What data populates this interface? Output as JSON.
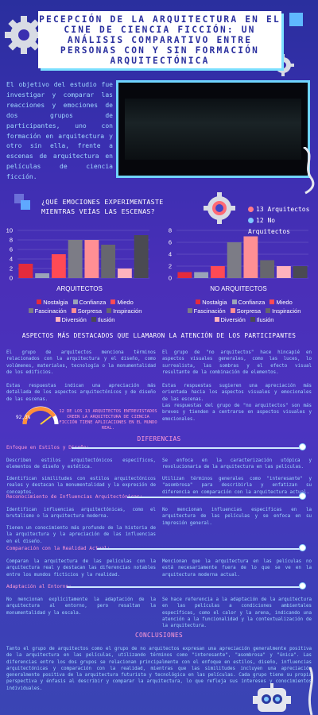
{
  "title": "PECEPCIÓN DE LA ARQUITECTURA EN EL CINE DE CIENCIA FICCIÓN: UN ANÁLISIS COMPARATIVO ENTRE PERSONAS CON Y SIN FORMACIÓN ARQUITECTÓNICA",
  "intro": "El objetivo del estudio fue investigar y comparar las reacciones y emociones de dos grupos de participantes, uno con formación en arquitectura y otro sin ella, frente a escenas de arquitectura en películas de ciencia ficción.",
  "question": "¿QUÉ EMOCIONES EXPERIMENTASTE MIENTRAS VEÍAS LAS ESCENAS?",
  "participants": {
    "arch": "13 Arquitectos",
    "noarch": "12 No Arquitectos"
  },
  "colors": {
    "nostalgia": "#e32b3d",
    "confianza": "#9aa3b8",
    "miedo": "#ff4a55",
    "fascinacion": "#7c7c86",
    "sorpresa": "#ff8f94",
    "inspiracion": "#66666e",
    "diversion": "#ffb3be",
    "ilusion": "#4a4a52"
  },
  "chart_data": [
    {
      "type": "bar",
      "title": "ARQUITECTOS",
      "categories": [
        "Nostalgia",
        "Confianza",
        "Miedo",
        "Fascinación",
        "Sorpresa",
        "Inspiración",
        "Diversión",
        "Ilusión"
      ],
      "values": [
        3,
        1,
        5,
        8,
        8,
        7,
        2,
        9
      ],
      "ylim": [
        0,
        10
      ],
      "yticks": [
        0,
        2,
        4,
        6,
        8,
        10
      ]
    },
    {
      "type": "bar",
      "title": "NO ARQUITECTOS",
      "categories": [
        "Nostalgia",
        "Confianza",
        "Miedo",
        "Fascinación",
        "Sorpresa",
        "Inspiración",
        "Diversión",
        "Ilusión"
      ],
      "values": [
        1,
        1,
        2,
        6,
        7,
        3,
        2,
        2
      ],
      "ylim": [
        0,
        8
      ],
      "yticks": [
        0,
        2,
        4,
        6,
        8
      ]
    }
  ],
  "aspects": {
    "heading": "ASPECTOS MÁS DESTACADOS QUE LLAMARON LA ATENCIÓN DE LOS PARTICIPANTES",
    "left_1": "El grupo de arquitectos menciona términos relacionados con la arquitectura y el diseño, como volúmenes, materiales, tecnología o la monumentalidad de los edificios.",
    "left_2": "Estas respuestas indican una apreciación más detallada de los aspectos arquitectónicos y de diseño de las escenas.",
    "right_1": "El grupo de \"no arquitectos\" hace hincapié en aspectos visuales generales, como las luces, lo surrealista, las sombras y el efecto visual resultante de la combinación de elementos.",
    "right_2": "Estas respuestas sugieren una apreciación más orientada hacia los aspectos visuales y emocionales de las escenas.",
    "right_3": "Las respuestas del grupo de \"no arquitectos\" son más breves y tienden a centrarse en aspectos visuales y emocionales.",
    "gauge_value": "92,3%",
    "gauge_text": "12 DE LOS 13 ARQUITECTOS ENTREVISTADOS CREEN LA ARQUITECTURA DE CIENCIA FICCIÓN TIENE APLICACIONES EN EL MUNDO REAL."
  },
  "differences": {
    "heading": "DIFERENCIAS",
    "sections": [
      {
        "label": "Enfoque en Estilos y Diseño:",
        "left": "Describen estilos arquitectónicos específicos, elementos de diseño y estética.",
        "left2": "Identifican similitudes con estilos arquitectónicos reales y destacan la monumentalidad y la expresión de conceptos.",
        "right": "Se enfoca en la caracterización utópica y revolucionaria de la arquitectura en las películas.",
        "right2": "Utilizan términos generales como \"interesante\" y \"asombrosa\" para describirla y enfatizan su diferencia en comparación con la arquitectura actual."
      },
      {
        "label": "Reconocimiento de Influencias Arquitectónicas:",
        "left": "Identifican influencias arquitectónicas, como el brutalismo o la arquitectura moderna.",
        "left2": "Tienen un conocimiento más profundo de la historia de la arquitectura y la apreciación de las influencias en el diseño.",
        "right": "No mencionan influencias específicas en la arquitectura de las películas y se enfoca en su impresión general.",
        "right2": ""
      },
      {
        "label": "Comparación con la Realidad Actual:",
        "left": "Comparan la arquitectura de las películas con la arquitectura real y destacan las diferencias notables entre los mundos ficticios y la realidad.",
        "left2": "",
        "right": "Mencionan que la arquitectura en las películas no está necesariamente fuera de lo que se ve en la arquitectura moderna actual.",
        "right2": ""
      },
      {
        "label": "Adaptación al Entorno:",
        "left": "No mencionan explícitamente la adaptación de la arquitectura al entorno, pero resaltan la monumentalidad y la escala.",
        "left2": "",
        "right": "Se hace referencia a la adaptación de la arquitectura en las películas a condiciones ambientales específicas, como el calor y la arena, indicando una atención a la funcionalidad y la contextualización de la arquitectura.",
        "right2": ""
      }
    ]
  },
  "conclusions": {
    "heading": "CONCLUSIONES",
    "text": "Tanto el grupo de arquitectos como el grupo de no arquitectos expresan una apreciación generalmente positiva de la arquitectura en las películas, utilizando términos como \"interesante\", \"asombrosa\" y \"única\". Las diferencias entre los dos grupos se relacionan principalmente con el enfoque en estilos, diseño, influencias arquitectónicas y comparación con la realidad, mientras que las similitudes incluyen una apreciación generalmente positiva de la arquitectura futurista y tecnológica en las películas. Cada grupo tiene su propia perspectiva y énfasis al describir y comparar la arquitectura, lo que refleja sus intereses y conocimientos individuales."
  }
}
